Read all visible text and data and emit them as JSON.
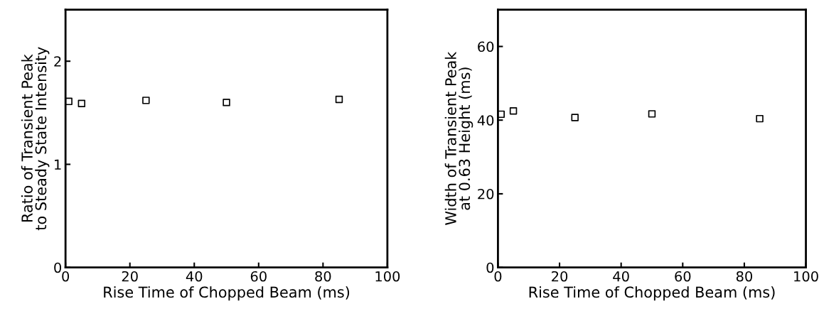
{
  "chart_data": [
    {
      "type": "scatter",
      "xlabel": "Rise Time of Chopped Beam (ms)",
      "ylabel": "Ratio of Transient Peak\nto Steady State Intensity",
      "x": [
        1,
        5,
        25,
        50,
        85
      ],
      "values": [
        1.61,
        1.59,
        1.62,
        1.6,
        1.63
      ],
      "color": "#000000",
      "marker": "square",
      "xlim": [
        0,
        100
      ],
      "xticks": [
        0,
        20,
        40,
        60,
        80,
        100
      ],
      "ylim": [
        0,
        2.5
      ],
      "yticks": [
        0,
        1,
        2
      ],
      "grid": false,
      "legend": false
    },
    {
      "type": "scatter",
      "xlabel": "Rise Time of Chopped Beam (ms)",
      "ylabel": "Width of Transient Peak\nat 0.63 Height (ms)",
      "x": [
        1,
        5,
        25,
        50,
        85
      ],
      "values": [
        41.6,
        42.5,
        40.7,
        41.7,
        40.4
      ],
      "color": "#000000",
      "marker": "square",
      "xlim": [
        0,
        100
      ],
      "xticks": [
        0,
        20,
        40,
        60,
        80,
        100
      ],
      "ylim": [
        0,
        70
      ],
      "yticks": [
        0,
        20,
        40,
        60
      ],
      "grid": false,
      "legend": false
    }
  ]
}
